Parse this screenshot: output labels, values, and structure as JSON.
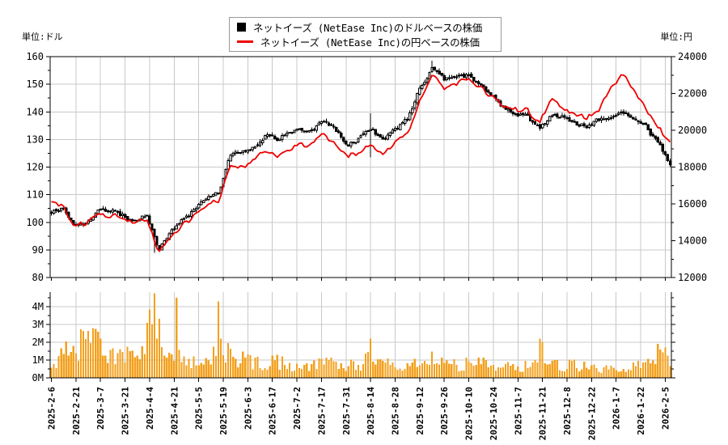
{
  "header": {
    "unit_left": "単位:ドル",
    "unit_right": "単位:円",
    "legend": [
      {
        "marker": "black-square",
        "label": "ネットイーズ (NetEase Inc)のドルベースの株価"
      },
      {
        "marker": "red-line",
        "label": "ネットイーズ (NetEase Inc)の円ベースの株価"
      }
    ]
  },
  "colors": {
    "background": "#ffffff",
    "grid": "#c8c8c8",
    "axis": "#000000",
    "text": "#000000",
    "candle_up_fill": "#ffffff",
    "candle_down_fill": "#000000",
    "candle_stroke": "#000000",
    "yen_line": "#ee0000",
    "volume_bar": "#f3a01d",
    "legend_border": "#999999"
  },
  "chart_data": {
    "type": "candlestick+line+volume",
    "title": "ネットイーズ (NetEase Inc) 株価チャート 2025-2-6〜2026-2-5",
    "trading_days": 253,
    "days_per_label": 10,
    "x_tick_labels": [
      "2025-2-6",
      "2025-2-21",
      "2025-3-7",
      "2025-3-21",
      "2025-4-4",
      "2025-4-21",
      "2025-5-5",
      "2025-5-19",
      "2025-6-3",
      "2025-6-17",
      "2025-7-2",
      "2025-7-17",
      "2025-7-31",
      "2025-8-14",
      "2025-8-28",
      "2025-9-12",
      "2025-9-26",
      "2025-10-10",
      "2025-10-24",
      "2025-11-7",
      "2025-11-21",
      "2025-12-8",
      "2025-12-22",
      "2026-1-7",
      "2026-1-22",
      "2026-2-5"
    ],
    "left_axis": {
      "unit": "ドル",
      "min": 80,
      "max": 160,
      "tick_step": 10,
      "minor_step": 5
    },
    "right_axis": {
      "unit": "円",
      "min": 12000,
      "max": 24000,
      "tick_step": 2000,
      "minor_step": 1000
    },
    "volume_axis": {
      "min": 0,
      "max_labeled": 4,
      "tick_step": 1,
      "minor_step": 0.5,
      "suffix": "M"
    },
    "legend_position": "top-center",
    "grid": true,
    "series": [
      {
        "name": "ネットイーズ (NetEase Inc)のドルベースの株価",
        "type": "candlestick",
        "axis": "left",
        "weekly_close_usd": [
          104,
          105.5,
          99,
          99.5,
          104.5,
          104,
          102.5,
          100.5,
          103,
          90.5,
          95.5,
          101.5,
          104.5,
          108.5,
          110,
          123,
          125.5,
          128,
          131.5,
          130,
          132,
          133.5,
          133.5,
          137,
          132.5,
          128.5,
          131,
          132.5,
          130,
          133.5,
          137.5,
          149,
          156.5,
          151.5,
          152.5,
          153,
          150,
          146,
          141,
          139.5,
          138,
          133.5,
          139,
          138,
          135.5,
          135,
          137,
          139,
          140,
          138.5,
          134.5,
          128,
          121.5
        ],
        "candle_overrides": {
          "42": {
            "low": 89
          },
          "130": {
            "high": 139.5,
            "low": 123.5
          },
          "155": {
            "high": 158.5
          }
        }
      },
      {
        "name": "ネットイーズ (NetEase Inc)の円ベースの株価",
        "type": "line",
        "axis": "right",
        "weekly_close_jpy": [
          16200,
          16000,
          14800,
          14900,
          15600,
          15400,
          15200,
          15000,
          15300,
          13400,
          14100,
          14900,
          15400,
          15900,
          16100,
          17800,
          18100,
          18400,
          18900,
          18700,
          19000,
          19200,
          19200,
          19900,
          19100,
          18600,
          18900,
          19200,
          18800,
          19300,
          19900,
          21700,
          23200,
          22300,
          22500,
          22700,
          22300,
          21900,
          21300,
          21200,
          21000,
          20400,
          21700,
          21200,
          20800,
          20700,
          21200,
          22300,
          23000,
          22300,
          21200,
          20100,
          19300
        ]
      },
      {
        "name": "出来高",
        "type": "bar",
        "axis": "volume",
        "weekly_avg_millions": [
          0.8,
          1.3,
          1.8,
          1.9,
          2.0,
          1.4,
          1.3,
          1.1,
          2.2,
          2.4,
          1.4,
          1.1,
          0.9,
          0.8,
          1.5,
          1.5,
          1.0,
          0.9,
          0.8,
          0.9,
          0.7,
          0.65,
          0.7,
          0.8,
          0.8,
          0.7,
          0.8,
          1.1,
          0.8,
          0.7,
          0.7,
          0.9,
          1.0,
          0.8,
          0.7,
          0.8,
          0.9,
          0.7,
          0.6,
          0.6,
          0.7,
          1.2,
          0.9,
          0.7,
          0.8,
          0.6,
          0.5,
          0.6,
          0.7,
          0.6,
          0.8,
          1.3,
          1.1
        ],
        "spikes_by_day": {
          "19": 2.6,
          "39": 3.1,
          "40": 3.85,
          "41": 3.0,
          "42": 4.75,
          "43": 2.2,
          "51": 4.5,
          "68": 4.3,
          "69": 2.2,
          "130": 2.2,
          "199": 2.2,
          "200": 2.0,
          "247": 1.9,
          "248": 1.6
        }
      }
    ]
  }
}
